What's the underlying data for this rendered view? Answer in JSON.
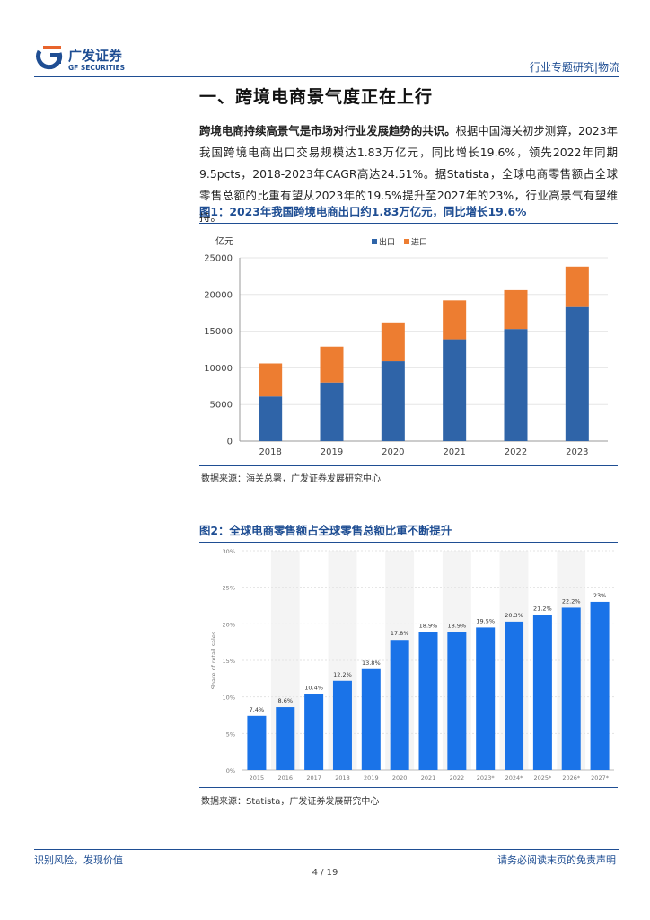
{
  "header": {
    "logo_cn": "广发证券",
    "logo_en": "GF SECURITIES",
    "report_type": "行业专题研究|物流"
  },
  "section": {
    "title": "一、跨境电商景气度正在上行"
  },
  "paragraph": {
    "bold_lead": "跨境电商持续高景气是市场对行业发展趋势的共识。",
    "body": "根据中国海关初步测算，2023年我国跨境电商出口交易规模达1.83万亿元，同比增长19.6%，领先2022年同期9.5pcts，2018-2023年CAGR高达24.51%。据Statista，全球电商零售额占全球零售总额的比重有望从2023年的19.5%提升至2027年的23%，行业高景气有望维持。"
  },
  "figure1": {
    "title": "图1：2023年我国跨境电商出口约1.83万亿元，同比增长19.6%",
    "source": "数据来源：海关总署，广发证券发展研究中心"
  },
  "figure2": {
    "title": "图2：全球电商零售额占全球零售总额比重不断提升",
    "source": "数据来源：Statista，广发证券发展研究中心"
  },
  "footer": {
    "left": "识别风险，发现价值",
    "right": "请务必阅读末页的免责声明",
    "page": "4 / 19"
  },
  "colors": {
    "brand_blue": "#1f4e93",
    "export_blue": "#2f64a8",
    "import_orange": "#ed7d31",
    "statista_blue": "#1a73e8"
  },
  "chart_data": [
    {
      "type": "bar",
      "stacked": true,
      "title": "",
      "ylabel": "亿元",
      "categories": [
        "2018",
        "2019",
        "2020",
        "2021",
        "2022",
        "2023"
      ],
      "series": [
        {
          "name": "出口",
          "values": [
            6100,
            8000,
            10900,
            13900,
            15300,
            18300
          ],
          "color": "#2f64a8"
        },
        {
          "name": "进口",
          "values": [
            4500,
            4900,
            5300,
            5300,
            5300,
            5500
          ],
          "color": "#ed7d31"
        }
      ],
      "ylim": [
        0,
        25000
      ],
      "yticks": [
        0,
        5000,
        10000,
        15000,
        20000,
        25000
      ],
      "legend": "top-center",
      "grid": true
    },
    {
      "type": "bar",
      "title": "",
      "ylabel": "Share of retail sales",
      "categories": [
        "2015",
        "2016",
        "2017",
        "2018",
        "2019",
        "2020",
        "2021",
        "2022",
        "2023*",
        "2024*",
        "2025*",
        "2026*",
        "2027*"
      ],
      "values": [
        7.4,
        8.6,
        10.4,
        12.2,
        13.8,
        17.8,
        18.9,
        18.9,
        19.5,
        20.3,
        21.2,
        22.2,
        23
      ],
      "labels": [
        "7.4%",
        "8.6%",
        "10.4%",
        "12.2%",
        "13.8%",
        "17.8%",
        "18.9%",
        "18.9%",
        "19.5%",
        "20.3%",
        "21.2%",
        "22.2%",
        "23%"
      ],
      "ylim": [
        0,
        30
      ],
      "yticks": [
        "0%",
        "5%",
        "10%",
        "15%",
        "20%",
        "25%",
        "30%"
      ],
      "grid": true
    }
  ]
}
